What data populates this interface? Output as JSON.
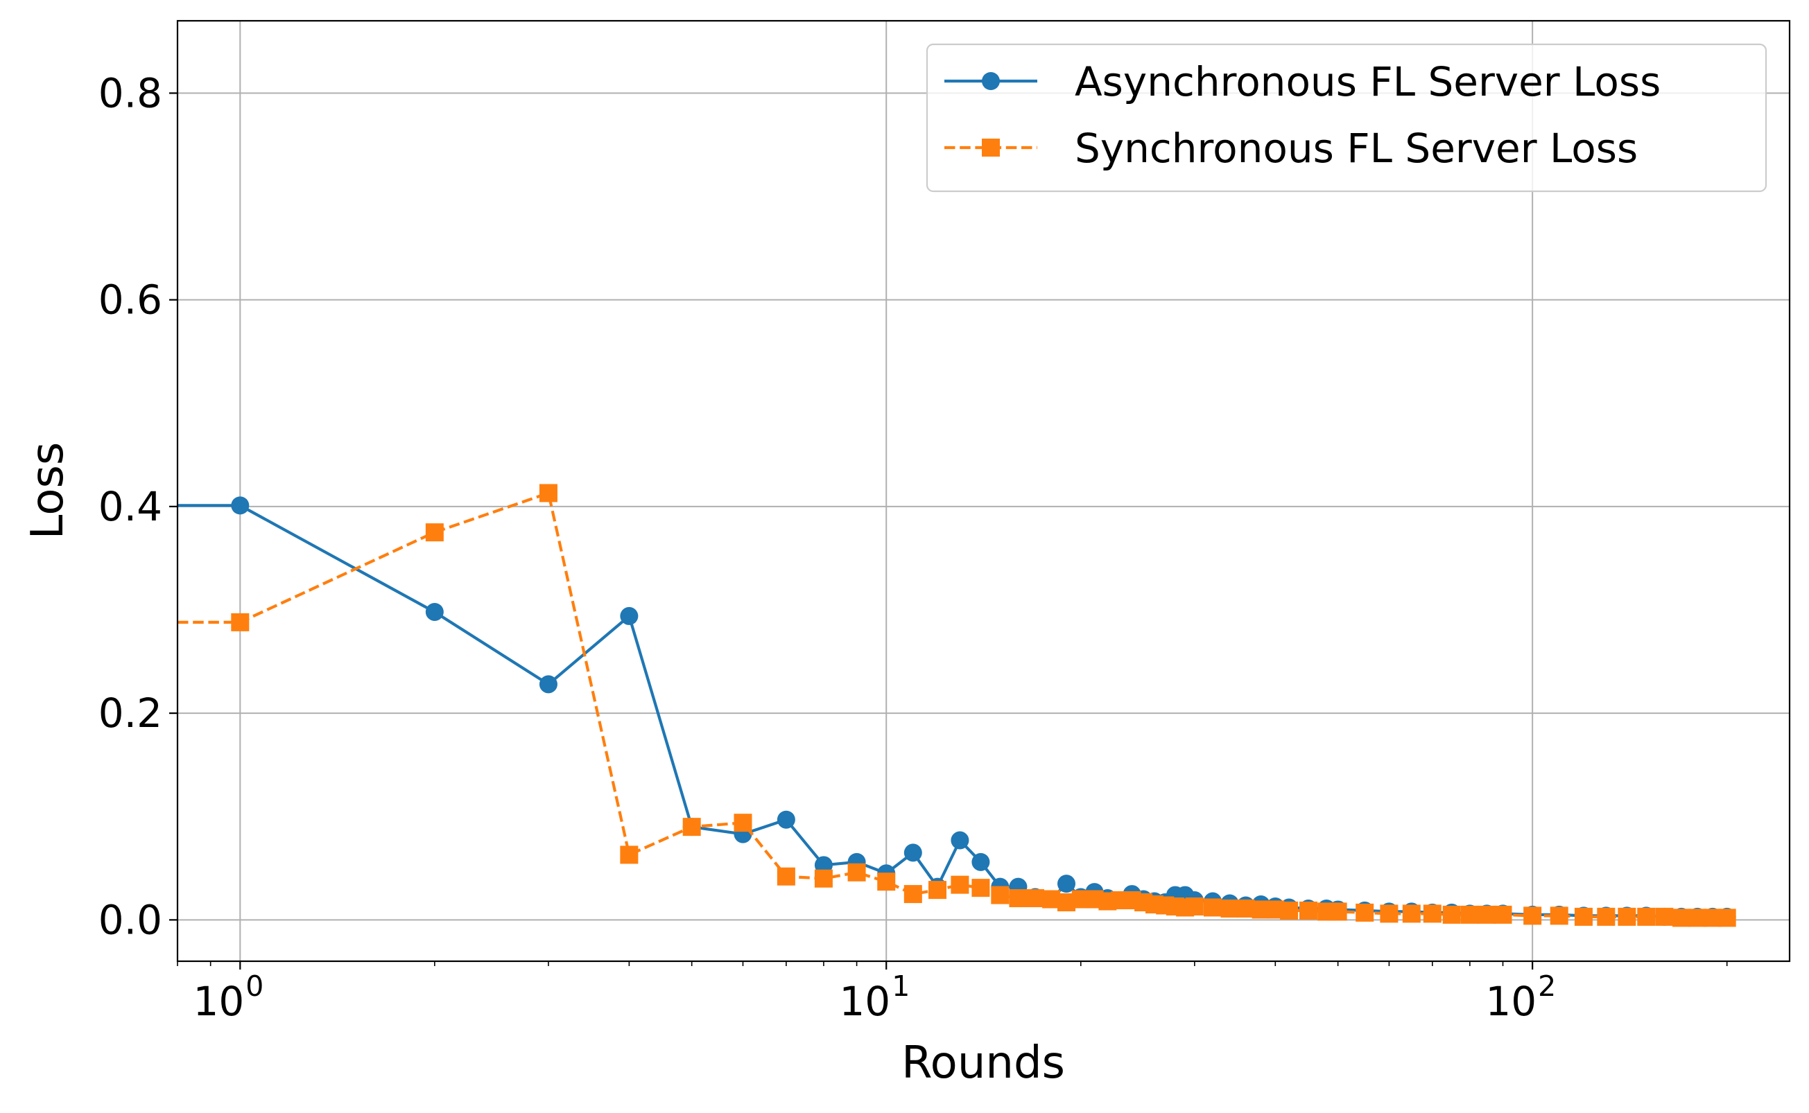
{
  "chart_data": {
    "type": "line",
    "title": "",
    "xlabel": "Rounds",
    "ylabel": "Loss",
    "xscale": "log",
    "xlim": [
      0.8,
      250
    ],
    "ylim": [
      -0.04,
      0.87
    ],
    "grid": true,
    "legend_position": "top-right",
    "x_ticks": [
      {
        "value": 1,
        "base": "10",
        "exp": "0"
      },
      {
        "value": 10,
        "base": "10",
        "exp": "1"
      },
      {
        "value": 100,
        "base": "10",
        "exp": "2"
      }
    ],
    "y_ticks": [
      {
        "value": 0.0,
        "label": "0.0"
      },
      {
        "value": 0.2,
        "label": "0.2"
      },
      {
        "value": 0.4,
        "label": "0.4"
      },
      {
        "value": 0.6,
        "label": "0.6"
      },
      {
        "value": 0.8,
        "label": "0.8"
      }
    ],
    "series": [
      {
        "name": "Asynchronous FL Server Loss",
        "color": "#1f77b4",
        "marker": "circle",
        "line_style": "solid",
        "x": [
          0,
          1,
          2,
          3,
          4,
          5,
          6,
          7,
          8,
          9,
          10,
          11,
          12,
          13,
          14,
          15,
          16,
          17,
          18,
          19,
          20,
          21,
          22,
          23,
          24,
          25,
          26,
          27,
          28,
          29,
          30,
          32,
          34,
          36,
          38,
          40,
          42,
          45,
          48,
          50,
          55,
          60,
          65,
          70,
          75,
          80,
          85,
          90,
          100,
          110,
          120,
          130,
          140,
          150,
          160,
          170,
          180,
          190,
          200
        ],
        "y": [
          0.401,
          0.401,
          0.298,
          0.228,
          0.294,
          0.09,
          0.083,
          0.097,
          0.053,
          0.056,
          0.045,
          0.065,
          0.032,
          0.077,
          0.056,
          0.032,
          0.032,
          0.022,
          0.02,
          0.035,
          0.022,
          0.027,
          0.021,
          0.019,
          0.025,
          0.02,
          0.018,
          0.017,
          0.024,
          0.024,
          0.019,
          0.018,
          0.016,
          0.014,
          0.015,
          0.013,
          0.012,
          0.011,
          0.011,
          0.01,
          0.009,
          0.008,
          0.008,
          0.007,
          0.007,
          0.006,
          0.006,
          0.006,
          0.005,
          0.005,
          0.004,
          0.004,
          0.004,
          0.004,
          0.003,
          0.003,
          0.003,
          0.003,
          0.003
        ]
      },
      {
        "name": "Synchronous FL Server Loss",
        "color": "#ff7f0e",
        "marker": "square",
        "line_style": "dashed",
        "x": [
          0,
          1,
          2,
          3,
          4,
          5,
          6,
          7,
          8,
          9,
          10,
          11,
          12,
          13,
          14,
          15,
          16,
          17,
          18,
          19,
          20,
          21,
          22,
          23,
          24,
          25,
          26,
          27,
          28,
          29,
          30,
          32,
          34,
          36,
          38,
          40,
          42,
          45,
          48,
          50,
          55,
          60,
          65,
          70,
          75,
          80,
          85,
          90,
          100,
          110,
          120,
          130,
          140,
          150,
          160,
          170,
          180,
          190,
          200
        ],
        "y": [
          0.288,
          0.288,
          0.375,
          0.413,
          0.063,
          0.09,
          0.094,
          0.042,
          0.04,
          0.046,
          0.037,
          0.025,
          0.029,
          0.034,
          0.031,
          0.024,
          0.021,
          0.021,
          0.02,
          0.017,
          0.02,
          0.02,
          0.018,
          0.019,
          0.019,
          0.017,
          0.015,
          0.014,
          0.013,
          0.012,
          0.013,
          0.012,
          0.011,
          0.011,
          0.01,
          0.01,
          0.009,
          0.009,
          0.008,
          0.008,
          0.007,
          0.006,
          0.006,
          0.006,
          0.005,
          0.005,
          0.005,
          0.005,
          0.004,
          0.004,
          0.003,
          0.003,
          0.003,
          0.003,
          0.003,
          0.002,
          0.002,
          0.002,
          0.002
        ]
      }
    ]
  }
}
